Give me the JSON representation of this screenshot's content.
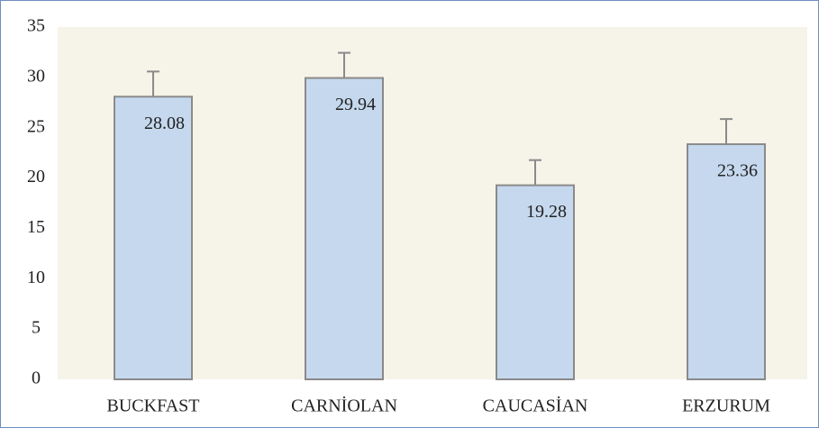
{
  "chart_data": {
    "type": "bar",
    "categories": [
      "BUCKFAST",
      "CARNİOLAN",
      "CAUCASİAN",
      "ERZURUM"
    ],
    "values": [
      28.08,
      29.94,
      19.28,
      23.36
    ],
    "errors": [
      2.5,
      2.5,
      2.5,
      2.5
    ],
    "color": "#c5d8ee",
    "ylim": [
      0,
      35
    ],
    "yticks": [
      0,
      5,
      10,
      15,
      20,
      25,
      30,
      35
    ],
    "grid": false
  }
}
